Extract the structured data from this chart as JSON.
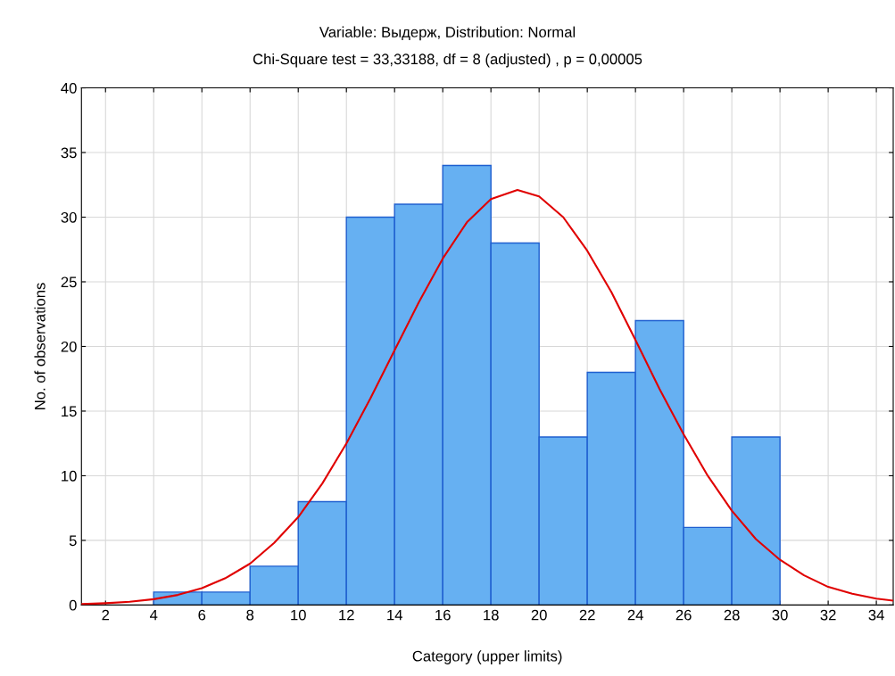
{
  "chart_data": {
    "type": "histogram",
    "title": "Variable: Выдерж, Distribution: Normal",
    "subtitle": "Chi-Square test = 33,33188, df = 8 (adjusted) , p = 0,00005",
    "xlabel": "Category (upper limits)",
    "ylabel": "No. of observations",
    "bins": [
      4,
      6,
      8,
      10,
      12,
      14,
      16,
      18,
      20,
      22,
      24,
      26,
      28,
      30
    ],
    "values": [
      1,
      1,
      3,
      8,
      30,
      31,
      34,
      28,
      13,
      18,
      22,
      6,
      13
    ],
    "color": "#66b0f2",
    "series": [
      {
        "type": "line",
        "color": "#e00000",
        "x": [
          1,
          2,
          3,
          4,
          5,
          6,
          7,
          8,
          9,
          10,
          11,
          12,
          13,
          14,
          15,
          16,
          17,
          18,
          19.1,
          20,
          21,
          22,
          23,
          24,
          25,
          26,
          27,
          28,
          29,
          30,
          31,
          32,
          33,
          34,
          34.7
        ],
        "values": [
          0.07,
          0.14,
          0.25,
          0.45,
          0.78,
          1.3,
          2.1,
          3.2,
          4.8,
          6.8,
          9.4,
          12.5,
          16.0,
          19.7,
          23.4,
          26.8,
          29.6,
          31.4,
          32.1,
          31.6,
          30.0,
          27.4,
          24.2,
          20.5,
          16.7,
          13.2,
          10.0,
          7.3,
          5.1,
          3.5,
          2.3,
          1.4,
          0.87,
          0.5,
          0.34
        ]
      }
    ],
    "xlim": [
      1,
      34.7
    ],
    "xticks": [
      2,
      4,
      6,
      8,
      10,
      12,
      14,
      16,
      18,
      20,
      22,
      24,
      26,
      28,
      30,
      32,
      34
    ],
    "ylim": [
      0,
      40
    ],
    "yticks": [
      0,
      5,
      10,
      15,
      20,
      25,
      30,
      35,
      40
    ],
    "grid": true,
    "legend": false
  }
}
